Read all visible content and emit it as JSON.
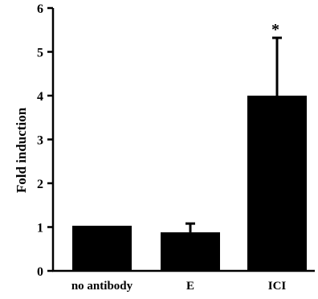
{
  "chart_data": {
    "type": "bar",
    "title": "",
    "xlabel": "",
    "ylabel": "Fold induction",
    "ylim": [
      0,
      6
    ],
    "yticks": [
      0,
      1,
      2,
      3,
      4,
      5,
      6
    ],
    "categories": [
      "no antibody",
      "E",
      "ICI"
    ],
    "values": [
      1.03,
      0.88,
      4.0
    ],
    "errors": [
      0.0,
      0.2,
      1.32
    ],
    "annotations": [
      {
        "category": "ICI",
        "text": "*"
      }
    ],
    "colors": {
      "bar": "#000000",
      "axis": "#000000"
    },
    "grid": false,
    "legend": "none"
  }
}
